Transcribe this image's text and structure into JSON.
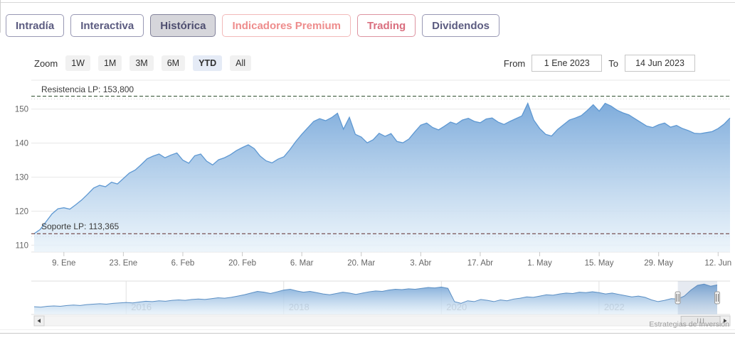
{
  "tabs": {
    "items": [
      {
        "label": "Intradía",
        "variant": "default"
      },
      {
        "label": "Interactiva",
        "variant": "default"
      },
      {
        "label": "Histórica",
        "variant": "active"
      },
      {
        "label": "Indicadores Premium",
        "variant": "premium"
      },
      {
        "label": "Trading",
        "variant": "premium"
      },
      {
        "label": "Dividendos",
        "variant": "default"
      }
    ]
  },
  "toolbar": {
    "zoom_label": "Zoom",
    "ranges": [
      {
        "label": "1W",
        "selected": false
      },
      {
        "label": "1M",
        "selected": false
      },
      {
        "label": "3M",
        "selected": false
      },
      {
        "label": "6M",
        "selected": false
      },
      {
        "label": "YTD",
        "selected": true
      },
      {
        "label": "All",
        "selected": false
      }
    ],
    "from_label": "From",
    "from_value": "1 Ene 2023",
    "to_label": "To",
    "to_value": "14 Jun 2023"
  },
  "annotations": {
    "resistance": {
      "label": "Resistencia LP: 153,800",
      "value": 153.8,
      "color": "#2f4f2f"
    },
    "support": {
      "label": "Soporte LP: 113,365",
      "value": 113.365,
      "color": "#5e2b2b"
    }
  },
  "chart_data": [
    {
      "type": "area",
      "role": "main",
      "title": "",
      "xlabel": "",
      "ylabel": "",
      "grid": true,
      "legend": "none",
      "ylim": [
        108,
        158.5
      ],
      "y_ticks": [
        110,
        120,
        130,
        140,
        150
      ],
      "x_ticks": [
        {
          "label": "9. Ene",
          "i": 5
        },
        {
          "label": "23. Ene",
          "i": 15
        },
        {
          "label": "6. Feb",
          "i": 25
        },
        {
          "label": "20. Feb",
          "i": 35
        },
        {
          "label": "6. Mar",
          "i": 45
        },
        {
          "label": "20. Mar",
          "i": 55
        },
        {
          "label": "3. Abr",
          "i": 65
        },
        {
          "label": "17. Abr",
          "i": 75
        },
        {
          "label": "1. May",
          "i": 85
        },
        {
          "label": "15. May",
          "i": 95
        },
        {
          "label": "29. May",
          "i": 105
        },
        {
          "label": "12. Jun",
          "i": 115
        }
      ],
      "x_range": "1 Ene 2023 – 14 Jun 2023, daily",
      "values": [
        113.4,
        114.6,
        116.9,
        119.2,
        120.7,
        121.0,
        120.6,
        121.9,
        123.3,
        125.0,
        126.8,
        127.6,
        127.2,
        128.5,
        128.0,
        129.6,
        131.2,
        132.1,
        133.7,
        135.4,
        136.2,
        136.8,
        135.7,
        136.5,
        137.1,
        135.0,
        134.1,
        136.3,
        136.8,
        134.7,
        133.6,
        135.1,
        135.7,
        136.6,
        137.8,
        138.7,
        139.5,
        138.4,
        136.2,
        134.8,
        134.2,
        135.3,
        136.0,
        138.1,
        140.5,
        142.6,
        144.5,
        146.4,
        147.2,
        146.6,
        147.5,
        148.8,
        144.1,
        147.6,
        142.6,
        141.8,
        140.1,
        141.0,
        142.9,
        142.0,
        142.8,
        140.5,
        140.1,
        141.2,
        143.3,
        145.3,
        145.9,
        144.6,
        143.9,
        145.0,
        146.2,
        145.6,
        146.8,
        147.3,
        146.4,
        146.0,
        147.1,
        147.4,
        146.2,
        145.5,
        146.4,
        147.2,
        148.0,
        151.7,
        146.8,
        144.3,
        142.6,
        142.1,
        144.0,
        145.4,
        146.8,
        147.4,
        148.1,
        149.6,
        151.3,
        149.4,
        151.7,
        150.9,
        149.7,
        148.9,
        148.3,
        147.2,
        146.1,
        145.0,
        144.6,
        145.4,
        145.9,
        144.7,
        145.2,
        144.3,
        143.7,
        142.9,
        142.8,
        143.1,
        143.4,
        144.3,
        145.6,
        147.4
      ]
    },
    {
      "type": "area",
      "role": "navigator",
      "ylim": [
        78,
        156
      ],
      "x_ticks": [
        {
          "label": "2016",
          "i": 14
        },
        {
          "label": "2018",
          "i": 38
        },
        {
          "label": "2020",
          "i": 62
        },
        {
          "label": "2022",
          "i": 86
        }
      ],
      "x_range": "late 2014 – mid 2023, monthly",
      "selection": {
        "start_i": 98,
        "end_i": 104
      },
      "values": [
        96,
        95,
        97,
        98,
        97,
        99,
        100,
        99,
        101,
        102,
        103,
        102,
        104,
        105,
        106,
        105,
        107,
        109,
        108,
        110,
        109,
        111,
        112,
        111,
        113,
        114,
        113,
        115,
        117,
        116,
        118,
        121,
        124,
        128,
        132,
        130,
        127,
        131,
        135,
        137,
        133,
        130,
        132,
        129,
        126,
        124,
        127,
        130,
        128,
        125,
        128,
        131,
        133,
        132,
        135,
        137,
        136,
        138,
        137,
        139,
        141,
        140,
        142,
        139,
        108,
        104,
        110,
        108,
        113,
        111,
        108,
        112,
        110,
        114,
        116,
        119,
        118,
        121,
        124,
        123,
        126,
        128,
        127,
        130,
        129,
        131,
        129,
        126,
        128,
        125,
        122,
        119,
        121,
        118,
        112,
        108,
        111,
        115,
        114,
        121,
        135,
        146,
        149,
        144,
        147
      ]
    }
  ],
  "colors": {
    "line": "#5e98d2",
    "fill_top": "rgba(120,168,218,0.95)",
    "fill_bottom": "rgba(233,243,250,0.8)",
    "nav_line": "#5b8fc4",
    "nav_fill_top": "rgba(118,165,214,0.95)",
    "nav_fill_bottom": "rgba(228,240,249,0.7)",
    "grid": "#e7e7e7",
    "axis_text": "#666666",
    "selection_mask": "rgba(102,125,171,0.16)"
  },
  "credit": "Estrategias de Inversión"
}
